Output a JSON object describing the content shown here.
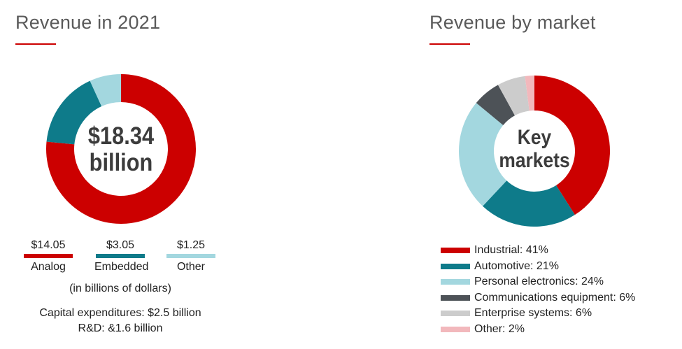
{
  "left_panel": {
    "title": "Revenue in 2021",
    "center_line1": "$18.34",
    "center_line2": "billion",
    "note_units": "(in billions of dollars)",
    "note_capex": "Capital expenditures: $2.5 billion",
    "note_rnd": "R&D: &1.6 billion"
  },
  "right_panel": {
    "title": "Revenue by market",
    "center_line1": "Key",
    "center_line2": "markets"
  },
  "colors": {
    "accent": "#cc0000",
    "analog": "#cc0000",
    "embedded": "#0e7b8a",
    "other": "#a3d7df",
    "industrial": "#cc0000",
    "automotive": "#0e7b8a",
    "personal_electronics": "#a3d7df",
    "communications": "#4d5257",
    "enterprise": "#cccccc",
    "other_market": "#f2b8bc"
  },
  "chart_data": [
    {
      "type": "pie",
      "title": "Revenue in 2021",
      "unit": "billions of dollars",
      "categories": [
        "Analog",
        "Embedded",
        "Other"
      ],
      "values": [
        14.05,
        3.05,
        1.25
      ],
      "value_labels": [
        "$14.05",
        "$3.05",
        "$1.25"
      ],
      "colors": [
        "#cc0000",
        "#0e7b8a",
        "#a3d7df"
      ],
      "total_label": "$18.34 billion"
    },
    {
      "type": "pie",
      "title": "Revenue by market",
      "categories": [
        "Industrial",
        "Automotive",
        "Personal electronics",
        "Communications equipment",
        "Enterprise systems",
        "Other"
      ],
      "values": [
        41,
        21,
        24,
        6,
        6,
        2
      ],
      "legend_labels": [
        "Industrial: 41%",
        "Automotive: 21%",
        "Personal electronics: 24%",
        "Communications equipment: 6%",
        "Enterprise systems: 6%",
        "Other: 2%"
      ],
      "colors": [
        "#cc0000",
        "#0e7b8a",
        "#a3d7df",
        "#4d5257",
        "#cccccc",
        "#f2b8bc"
      ],
      "legend_placement": "bottom"
    }
  ]
}
